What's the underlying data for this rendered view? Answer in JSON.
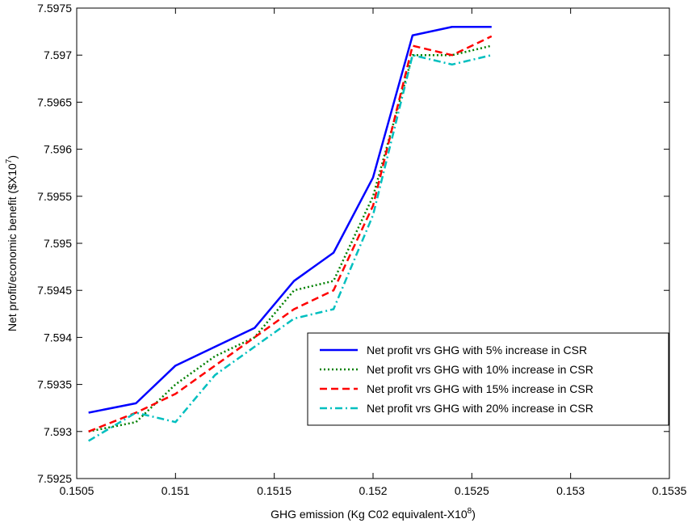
{
  "chart_data": {
    "type": "line",
    "xlabel": "GHG emission (Kg C02 equivalent-X10",
    "xlabel_exponent": "8",
    "xlabel_suffix": ")",
    "ylabel": "Net profit/economic benefit ($X10",
    "ylabel_exponent": "7",
    "ylabel_suffix": ")",
    "xlim": [
      0.1505,
      0.1535
    ],
    "ylim": [
      7.5925,
      7.5975
    ],
    "x_ticks": [
      0.1505,
      0.151,
      0.1515,
      0.152,
      0.1525,
      0.153,
      0.1535
    ],
    "x_tick_labels": [
      "0.1505",
      "0.151",
      "0.1515",
      "0.152",
      "0.1525",
      "0.153",
      "0.1535"
    ],
    "y_ticks": [
      7.5925,
      7.593,
      7.5935,
      7.594,
      7.5945,
      7.595,
      7.5955,
      7.596,
      7.5965,
      7.597,
      7.5975
    ],
    "y_tick_labels": [
      "7.5925",
      "7.593",
      "7.5935",
      "7.594",
      "7.5945",
      "7.595",
      "7.5955",
      "7.596",
      "7.5965",
      "7.597",
      "7.5975"
    ],
    "grid": false,
    "legend_position": "lower-right",
    "x": [
      0.15056,
      0.1508,
      0.151,
      0.1512,
      0.1514,
      0.1516,
      0.1518,
      0.152,
      0.1522,
      0.1524,
      0.1526
    ],
    "series": [
      {
        "name": "Net profit vrs GHG with 5% increase in CSR",
        "color": "#0000ff",
        "dash": "solid",
        "values": [
          7.5932,
          7.5933,
          7.5937,
          7.5939,
          7.5941,
          7.5946,
          7.5949,
          7.5957,
          7.59721,
          7.5973,
          7.5973
        ]
      },
      {
        "name": "Net profit vrs GHG with 10% increase in CSR",
        "color": "#008000",
        "dash": "dotted",
        "values": [
          7.593,
          7.5931,
          7.5935,
          7.5938,
          7.594,
          7.5945,
          7.5946,
          7.5955,
          7.597,
          7.597,
          7.5971
        ]
      },
      {
        "name": "Net profit vrs GHG with 15% increase in CSR",
        "color": "#ff0000",
        "dash": "dashed",
        "values": [
          7.593,
          7.5932,
          7.5934,
          7.5937,
          7.594,
          7.5943,
          7.5945,
          7.5954,
          7.5971,
          7.597,
          7.5972
        ]
      },
      {
        "name": "Net profit vrs GHG with 20% increase in CSR",
        "color": "#00bfbf",
        "dash": "dashdot",
        "values": [
          7.5929,
          7.5932,
          7.5931,
          7.5936,
          7.5939,
          7.5942,
          7.5943,
          7.5953,
          7.597,
          7.5969,
          7.597
        ]
      }
    ]
  }
}
